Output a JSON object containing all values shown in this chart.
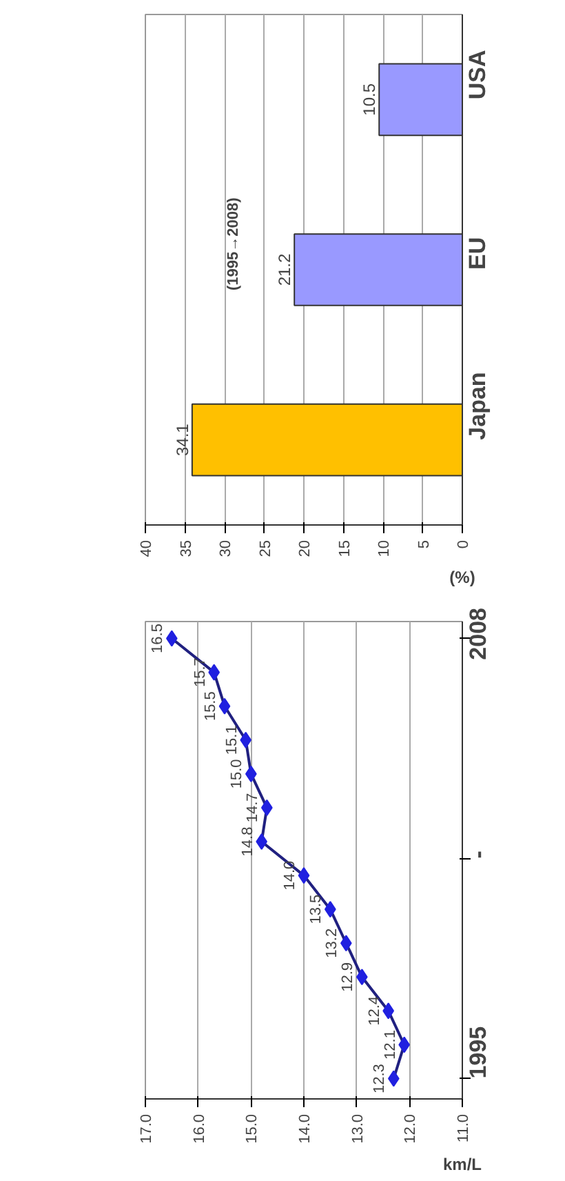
{
  "chart_data": [
    {
      "type": "bar",
      "orientation": "horizontal",
      "subtitle": "(1995→2008)",
      "xlabel": "(%)",
      "categories": [
        "USA",
        "EU",
        "Japan"
      ],
      "values": [
        10.5,
        21.2,
        34.1
      ],
      "colors": [
        "#9999ff",
        "#9999ff",
        "#ffc000"
      ],
      "xlim": [
        40,
        0
      ],
      "xticks": [
        0,
        5,
        10,
        15,
        20,
        25,
        30,
        35,
        40
      ],
      "grid": "x",
      "data_labels": true
    },
    {
      "type": "line",
      "xlabel": "km/L",
      "x": [
        12.3,
        12.1,
        12.4,
        12.9,
        13.2,
        13.5,
        14.0,
        14.8,
        14.7,
        15.0,
        15.1,
        15.5,
        15.7,
        16.5
      ],
      "series": [
        {
          "color": "#2020e0",
          "values": [
            1995,
            1996,
            1997,
            1998,
            1999,
            2000,
            2001,
            2002,
            2003,
            2004,
            2005,
            2006,
            2007,
            2008
          ]
        }
      ],
      "annotations": [
        {
          "text": "12.3",
          "x": 12.3,
          "y": 1995
        },
        {
          "text": "12.1",
          "x": 12.1,
          "y": 1996
        },
        {
          "text": "12.4",
          "x": 12.4,
          "y": 1997
        },
        {
          "text": "12.9",
          "x": 12.9,
          "y": 1998
        },
        {
          "text": "13.2",
          "x": 13.2,
          "y": 1999
        },
        {
          "text": "13.5",
          "x": 13.5,
          "y": 2000
        },
        {
          "text": "14.0",
          "x": 14.0,
          "y": 2001
        },
        {
          "text": "14.8",
          "x": 14.8,
          "y": 2002
        },
        {
          "text": "14.7",
          "x": 14.7,
          "y": 2003
        },
        {
          "text": "15.0",
          "x": 15.0,
          "y": 2004
        },
        {
          "text": "15.1",
          "x": 15.1,
          "y": 2005
        },
        {
          "text": "15.5",
          "x": 15.5,
          "y": 2006
        },
        {
          "text": "15.7",
          "x": 15.7,
          "y": 2007
        },
        {
          "text": "16.5",
          "x": 16.5,
          "y": 2008
        }
      ],
      "ylim": [
        1994.4,
        2008.5
      ],
      "yticks": [
        1995,
        {
          "value": 2001.5,
          "label": "-"
        },
        2008
      ],
      "xlim": [
        17,
        11
      ],
      "xticks": [
        {
          "value": 11,
          "label": "11.0"
        },
        {
          "value": 12,
          "label": "12.0"
        },
        {
          "value": 13,
          "label": "13.0"
        },
        {
          "value": 14,
          "label": "14.0"
        },
        {
          "value": 15,
          "label": "15.0"
        },
        {
          "value": 16,
          "label": "16.0"
        },
        {
          "value": 17,
          "label": "17.0"
        }
      ],
      "grid": "x",
      "marker": "diamond",
      "line_style": "solid"
    }
  ]
}
